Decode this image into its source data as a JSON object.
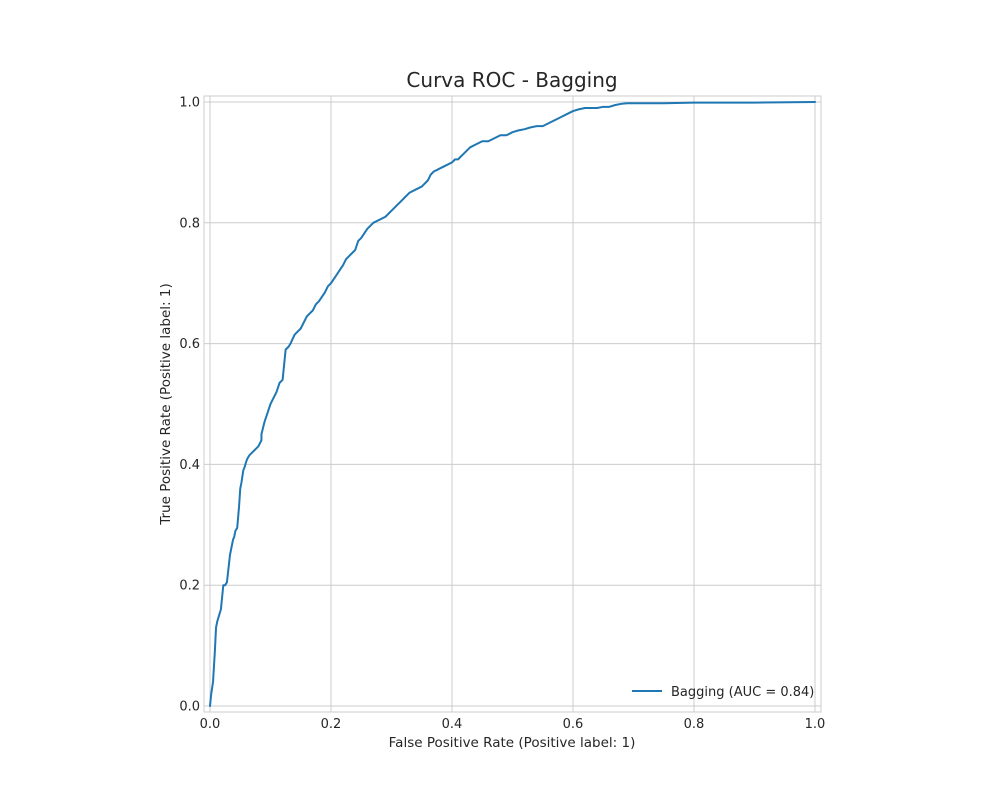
{
  "chart_data": {
    "type": "line",
    "title": "Curva ROC - Bagging",
    "xlabel": "False Positive Rate (Positive label: 1)",
    "ylabel": "True Positive Rate (Positive label: 1)",
    "xlim": [
      0.0,
      1.0
    ],
    "ylim": [
      0.0,
      1.0
    ],
    "xticks": [
      "0.0",
      "0.2",
      "0.4",
      "0.6",
      "0.8",
      "1.0"
    ],
    "yticks": [
      "0.0",
      "0.2",
      "0.4",
      "0.6",
      "0.8",
      "1.0"
    ],
    "grid": true,
    "legend_position": "lower-right",
    "series": [
      {
        "name": "Bagging (AUC = 0.84)",
        "color": "#1f77b4",
        "x": [
          0.0,
          0.002,
          0.005,
          0.008,
          0.01,
          0.012,
          0.018,
          0.022,
          0.025,
          0.028,
          0.033,
          0.035,
          0.038,
          0.04,
          0.042,
          0.045,
          0.048,
          0.05,
          0.052,
          0.055,
          0.057,
          0.06,
          0.062,
          0.065,
          0.07,
          0.075,
          0.08,
          0.085,
          0.085,
          0.09,
          0.095,
          0.1,
          0.105,
          0.11,
          0.115,
          0.12,
          0.125,
          0.13,
          0.133,
          0.14,
          0.15,
          0.16,
          0.17,
          0.175,
          0.18,
          0.19,
          0.195,
          0.2,
          0.21,
          0.22,
          0.225,
          0.23,
          0.24,
          0.245,
          0.25,
          0.26,
          0.27,
          0.28,
          0.29,
          0.3,
          0.305,
          0.31,
          0.315,
          0.32,
          0.33,
          0.34,
          0.35,
          0.36,
          0.365,
          0.37,
          0.38,
          0.39,
          0.4,
          0.405,
          0.41,
          0.42,
          0.43,
          0.44,
          0.45,
          0.46,
          0.47,
          0.48,
          0.49,
          0.5,
          0.51,
          0.52,
          0.53,
          0.54,
          0.55,
          0.56,
          0.57,
          0.58,
          0.59,
          0.6,
          0.61,
          0.62,
          0.64,
          0.65,
          0.66,
          0.67,
          0.68,
          0.69,
          0.7,
          0.75,
          0.8,
          0.9,
          1.0
        ],
        "y": [
          0.0,
          0.02,
          0.04,
          0.09,
          0.13,
          0.14,
          0.16,
          0.2,
          0.2,
          0.205,
          0.25,
          0.26,
          0.275,
          0.28,
          0.29,
          0.295,
          0.33,
          0.36,
          0.37,
          0.39,
          0.395,
          0.405,
          0.41,
          0.415,
          0.42,
          0.425,
          0.43,
          0.44,
          0.45,
          0.47,
          0.485,
          0.5,
          0.51,
          0.52,
          0.535,
          0.54,
          0.59,
          0.595,
          0.6,
          0.615,
          0.625,
          0.645,
          0.655,
          0.665,
          0.67,
          0.685,
          0.695,
          0.7,
          0.715,
          0.73,
          0.74,
          0.745,
          0.755,
          0.77,
          0.775,
          0.79,
          0.8,
          0.805,
          0.81,
          0.82,
          0.825,
          0.83,
          0.835,
          0.84,
          0.85,
          0.855,
          0.86,
          0.87,
          0.88,
          0.885,
          0.89,
          0.895,
          0.9,
          0.905,
          0.905,
          0.915,
          0.925,
          0.93,
          0.935,
          0.935,
          0.94,
          0.945,
          0.945,
          0.95,
          0.953,
          0.955,
          0.958,
          0.96,
          0.96,
          0.965,
          0.97,
          0.975,
          0.98,
          0.985,
          0.988,
          0.99,
          0.99,
          0.992,
          0.992,
          0.995,
          0.997,
          0.998,
          0.998,
          0.998,
          0.999,
          0.999,
          1.0
        ]
      }
    ]
  }
}
